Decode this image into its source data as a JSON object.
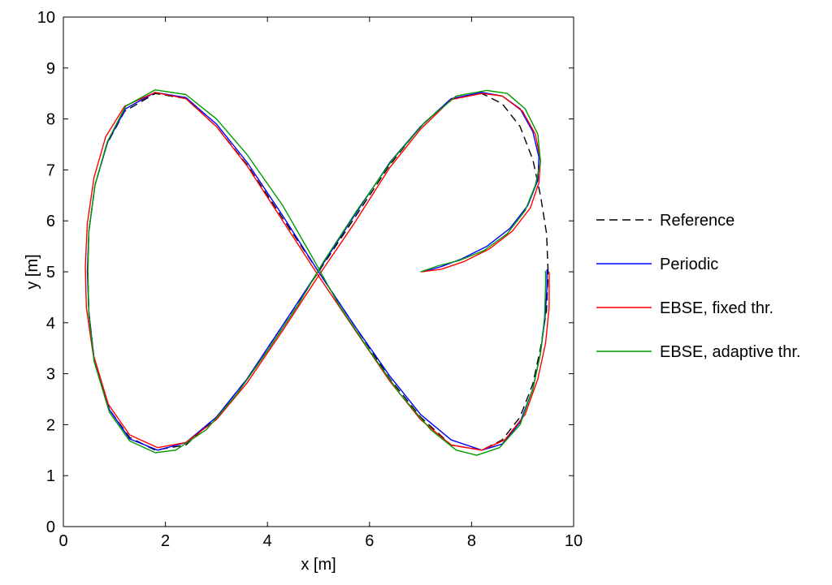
{
  "chart_data": {
    "type": "line",
    "xlabel": "x [m]",
    "ylabel": "y [m]",
    "xlim": [
      0,
      10
    ],
    "ylim": [
      0,
      10
    ],
    "xticks": [
      "0",
      "2",
      "4",
      "6",
      "8",
      "10"
    ],
    "yticks": [
      "0",
      "1",
      "2",
      "3",
      "4",
      "5",
      "6",
      "7",
      "8",
      "9",
      "10"
    ],
    "grid": false,
    "legend_position": "outside-right",
    "series": [
      {
        "name": "Reference",
        "color": "#000000",
        "dashed": true,
        "points": [
          [
            9.5,
            5.0
          ],
          [
            9.47,
            5.75
          ],
          [
            9.35,
            6.5
          ],
          [
            9.2,
            7.2
          ],
          [
            8.95,
            7.85
          ],
          [
            8.6,
            8.3
          ],
          [
            8.2,
            8.5
          ],
          [
            7.6,
            8.4
          ],
          [
            7.0,
            7.85
          ],
          [
            6.4,
            7.1
          ],
          [
            5.7,
            6.05
          ],
          [
            5.0,
            5.0
          ],
          [
            4.3,
            3.95
          ],
          [
            3.6,
            2.9
          ],
          [
            3.0,
            2.15
          ],
          [
            2.4,
            1.6
          ],
          [
            1.8,
            1.5
          ],
          [
            1.3,
            1.75
          ],
          [
            0.9,
            2.3
          ],
          [
            0.6,
            3.3
          ],
          [
            0.5,
            4.2
          ],
          [
            0.48,
            5.0
          ],
          [
            0.5,
            5.8
          ],
          [
            0.62,
            6.7
          ],
          [
            0.85,
            7.5
          ],
          [
            1.2,
            8.15
          ],
          [
            1.8,
            8.5
          ],
          [
            2.4,
            8.4
          ],
          [
            3.0,
            7.85
          ],
          [
            3.6,
            7.1
          ],
          [
            4.3,
            6.05
          ],
          [
            5.0,
            5.0
          ],
          [
            5.7,
            3.95
          ],
          [
            6.4,
            2.9
          ],
          [
            7.0,
            2.15
          ],
          [
            7.6,
            1.6
          ],
          [
            8.2,
            1.5
          ],
          [
            8.6,
            1.7
          ],
          [
            8.95,
            2.15
          ],
          [
            9.2,
            2.8
          ],
          [
            9.35,
            3.5
          ],
          [
            9.47,
            4.25
          ],
          [
            9.5,
            5.0
          ]
        ]
      },
      {
        "name": "Periodic",
        "color": "#0000ff",
        "dashed": false,
        "points": [
          [
            7.05,
            5.0
          ],
          [
            7.4,
            5.1
          ],
          [
            7.8,
            5.25
          ],
          [
            8.3,
            5.5
          ],
          [
            8.75,
            5.85
          ],
          [
            9.1,
            6.3
          ],
          [
            9.3,
            6.8
          ],
          [
            9.32,
            7.25
          ],
          [
            9.2,
            7.75
          ],
          [
            8.95,
            8.2
          ],
          [
            8.6,
            8.45
          ],
          [
            8.2,
            8.52
          ],
          [
            7.6,
            8.4
          ],
          [
            7.0,
            7.85
          ],
          [
            6.4,
            7.15
          ],
          [
            5.7,
            6.1
          ],
          [
            5.0,
            5.02
          ],
          [
            4.3,
            3.95
          ],
          [
            3.6,
            2.9
          ],
          [
            3.0,
            2.15
          ],
          [
            2.4,
            1.65
          ],
          [
            1.85,
            1.5
          ],
          [
            1.3,
            1.72
          ],
          [
            0.9,
            2.3
          ],
          [
            0.6,
            3.3
          ],
          [
            0.5,
            4.2
          ],
          [
            0.47,
            5.0
          ],
          [
            0.5,
            5.8
          ],
          [
            0.62,
            6.7
          ],
          [
            0.87,
            7.55
          ],
          [
            1.22,
            8.2
          ],
          [
            1.8,
            8.52
          ],
          [
            2.4,
            8.42
          ],
          [
            3.0,
            7.9
          ],
          [
            3.6,
            7.15
          ],
          [
            4.3,
            6.1
          ],
          [
            5.0,
            5.0
          ],
          [
            5.7,
            3.95
          ],
          [
            6.4,
            2.95
          ],
          [
            7.0,
            2.2
          ],
          [
            7.6,
            1.7
          ],
          [
            8.2,
            1.5
          ],
          [
            8.6,
            1.62
          ],
          [
            8.95,
            2.05
          ],
          [
            9.2,
            2.7
          ],
          [
            9.35,
            3.4
          ],
          [
            9.44,
            4.1
          ],
          [
            9.48,
            4.7
          ],
          [
            9.48,
            5.05
          ]
        ]
      },
      {
        "name": "EBSE, fixed thr.",
        "color": "#ff0000",
        "dashed": false,
        "points": [
          [
            7.0,
            5.0
          ],
          [
            7.4,
            5.05
          ],
          [
            7.85,
            5.2
          ],
          [
            8.35,
            5.45
          ],
          [
            8.8,
            5.8
          ],
          [
            9.15,
            6.25
          ],
          [
            9.32,
            6.75
          ],
          [
            9.35,
            7.2
          ],
          [
            9.25,
            7.7
          ],
          [
            9.0,
            8.15
          ],
          [
            8.6,
            8.45
          ],
          [
            8.2,
            8.5
          ],
          [
            7.6,
            8.38
          ],
          [
            7.0,
            7.8
          ],
          [
            6.4,
            7.05
          ],
          [
            5.7,
            5.95
          ],
          [
            5.0,
            4.92
          ],
          [
            4.3,
            3.85
          ],
          [
            3.6,
            2.82
          ],
          [
            3.0,
            2.1
          ],
          [
            2.4,
            1.65
          ],
          [
            1.85,
            1.55
          ],
          [
            1.3,
            1.8
          ],
          [
            0.88,
            2.4
          ],
          [
            0.58,
            3.4
          ],
          [
            0.45,
            4.3
          ],
          [
            0.43,
            5.1
          ],
          [
            0.47,
            5.95
          ],
          [
            0.6,
            6.85
          ],
          [
            0.83,
            7.65
          ],
          [
            1.2,
            8.25
          ],
          [
            1.8,
            8.52
          ],
          [
            2.4,
            8.4
          ],
          [
            3.0,
            7.85
          ],
          [
            3.6,
            7.08
          ],
          [
            4.3,
            6.0
          ],
          [
            5.0,
            4.92
          ],
          [
            5.7,
            3.88
          ],
          [
            6.4,
            2.85
          ],
          [
            7.0,
            2.1
          ],
          [
            7.6,
            1.6
          ],
          [
            8.2,
            1.5
          ],
          [
            8.65,
            1.7
          ],
          [
            9.05,
            2.2
          ],
          [
            9.3,
            2.9
          ],
          [
            9.45,
            3.6
          ],
          [
            9.52,
            4.3
          ],
          [
            9.52,
            5.0
          ]
        ]
      },
      {
        "name": "EBSE, adaptive thr.",
        "color": "#009900",
        "dashed": false,
        "points": [
          [
            7.0,
            5.0
          ],
          [
            7.35,
            5.12
          ],
          [
            7.75,
            5.22
          ],
          [
            8.25,
            5.42
          ],
          [
            8.7,
            5.75
          ],
          [
            9.05,
            6.2
          ],
          [
            9.25,
            6.7
          ],
          [
            9.35,
            7.15
          ],
          [
            9.3,
            7.7
          ],
          [
            9.05,
            8.2
          ],
          [
            8.7,
            8.5
          ],
          [
            8.3,
            8.56
          ],
          [
            7.7,
            8.45
          ],
          [
            7.1,
            7.95
          ],
          [
            6.45,
            7.2
          ],
          [
            5.75,
            6.2
          ],
          [
            5.1,
            5.2
          ],
          [
            4.6,
            4.35
          ],
          [
            4.0,
            3.45
          ],
          [
            3.4,
            2.6
          ],
          [
            2.8,
            1.9
          ],
          [
            2.2,
            1.5
          ],
          [
            1.8,
            1.45
          ],
          [
            1.3,
            1.68
          ],
          [
            0.9,
            2.25
          ],
          [
            0.6,
            3.25
          ],
          [
            0.5,
            4.15
          ],
          [
            0.48,
            5.0
          ],
          [
            0.5,
            5.8
          ],
          [
            0.62,
            6.7
          ],
          [
            0.86,
            7.55
          ],
          [
            1.22,
            8.25
          ],
          [
            1.8,
            8.57
          ],
          [
            2.4,
            8.48
          ],
          [
            3.0,
            8.0
          ],
          [
            3.6,
            7.3
          ],
          [
            4.3,
            6.3
          ],
          [
            4.9,
            5.25
          ],
          [
            5.4,
            4.35
          ],
          [
            6.0,
            3.45
          ],
          [
            6.6,
            2.6
          ],
          [
            7.2,
            1.9
          ],
          [
            7.7,
            1.5
          ],
          [
            8.1,
            1.4
          ],
          [
            8.55,
            1.55
          ],
          [
            8.95,
            2.0
          ],
          [
            9.2,
            2.7
          ],
          [
            9.35,
            3.4
          ],
          [
            9.43,
            4.1
          ],
          [
            9.45,
            4.7
          ],
          [
            9.45,
            5.02
          ]
        ]
      }
    ]
  }
}
